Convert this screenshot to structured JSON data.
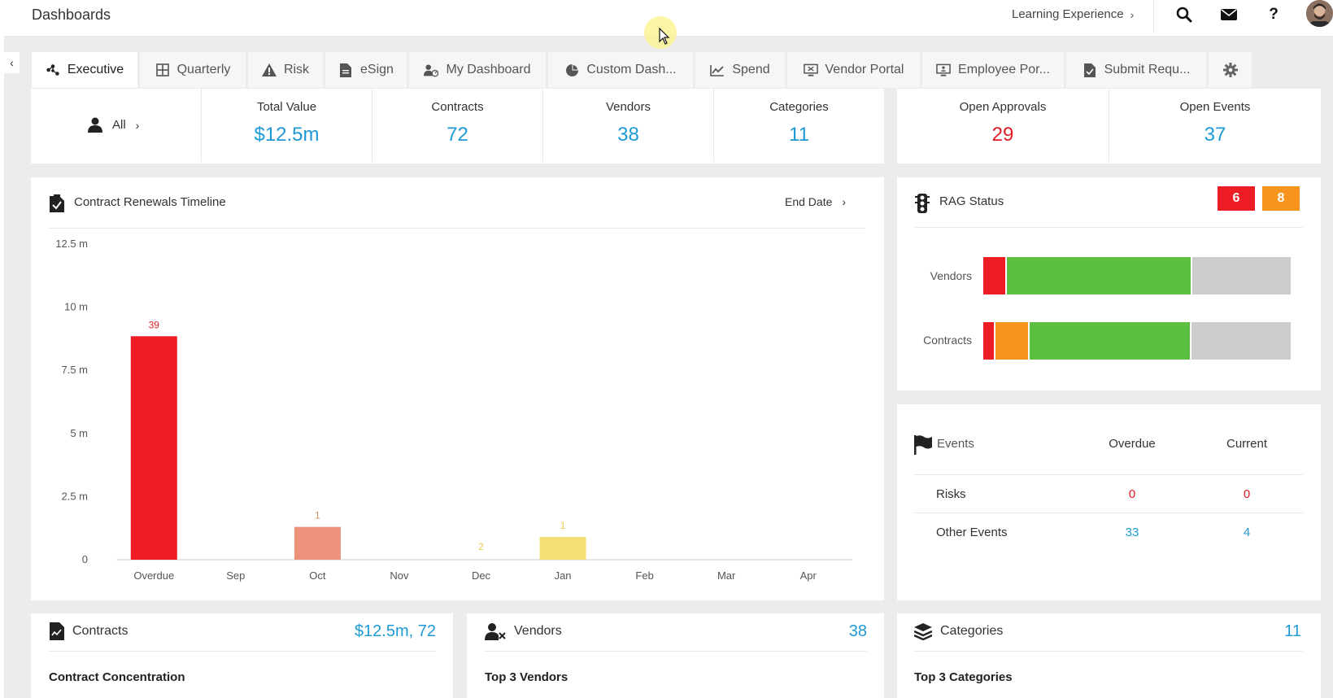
{
  "header": {
    "title": "Dashboards",
    "learning_label": "Learning Experience"
  },
  "tabs": [
    {
      "label": "Executive",
      "icon": "network-icon"
    },
    {
      "label": "Quarterly",
      "icon": "grid-icon"
    },
    {
      "label": "Risk",
      "icon": "warning-icon"
    },
    {
      "label": "eSign",
      "icon": "document-icon"
    },
    {
      "label": "My Dashboard",
      "icon": "user-gauge-icon"
    },
    {
      "label": "Custom Dash...",
      "icon": "pie-icon"
    },
    {
      "label": "Spend",
      "icon": "trend-icon"
    },
    {
      "label": "Vendor Portal",
      "icon": "monitor-icon"
    },
    {
      "label": "Employee Por...",
      "icon": "screen-user-icon"
    },
    {
      "label": "Submit Requ...",
      "icon": "form-icon"
    }
  ],
  "stats": {
    "filter_label": "All",
    "total_value_label": "Total Value",
    "total_value": "$12.5m",
    "contracts_label": "Contracts",
    "contracts": "72",
    "vendors_label": "Vendors",
    "vendors": "38",
    "categories_label": "Categories",
    "categories": "11",
    "open_approvals_label": "Open Approvals",
    "open_approvals": "29",
    "open_events_label": "Open Events",
    "open_events": "37"
  },
  "renewals": {
    "title": "Contract Renewals Timeline",
    "sort_label": "End Date"
  },
  "chart_data": {
    "type": "bar",
    "categories": [
      "Overdue",
      "Sep",
      "Oct",
      "Nov",
      "Dec",
      "Jan",
      "Feb",
      "Mar",
      "Apr"
    ],
    "values": [
      8.85,
      0,
      1.3,
      0,
      0,
      0.9,
      0,
      0,
      0
    ],
    "counts": [
      "39",
      "",
      "1",
      "",
      "2",
      "1",
      "",
      "",
      ""
    ],
    "colors": [
      "#ee1c25",
      "",
      "#ec917a",
      "",
      "#f3d96a",
      "#f5de72",
      "",
      "",
      ""
    ],
    "count_colors": [
      "#e31b23",
      "",
      "#d98a5e",
      "",
      "#e8c84e",
      "#e8c84e",
      "",
      "",
      ""
    ],
    "yticks": [
      "0",
      "2.5 m",
      "5 m",
      "7.5 m",
      "10 m",
      "12.5 m"
    ],
    "ylim": [
      0,
      12.5
    ]
  },
  "rag": {
    "title": "RAG Status",
    "badge_red": "6",
    "badge_amber": "8",
    "vendors_label": "Vendors",
    "contracts_label": "Contracts",
    "vendors_segments": [
      {
        "color": "#ee1c25",
        "fraction": 0.078
      },
      {
        "color": "#5bbf3f",
        "fraction": 0.602
      },
      {
        "color": "#cccccc",
        "fraction": 0.32
      }
    ],
    "contracts_segments": [
      {
        "color": "#ee1c25",
        "fraction": 0.04
      },
      {
        "color": "#f7941d",
        "fraction": 0.11
      },
      {
        "color": "#5bbf3f",
        "fraction": 0.528
      },
      {
        "color": "#cccccc",
        "fraction": 0.322
      }
    ]
  },
  "events": {
    "title": "Events",
    "overdue_label": "Overdue",
    "current_label": "Current",
    "risks_label": "Risks",
    "risks_overdue": "0",
    "risks_current": "0",
    "other_label": "Other Events",
    "other_overdue": "33",
    "other_current": "4"
  },
  "bottom": {
    "contracts_title": "Contracts",
    "contracts_value": "$12.5m, 72",
    "contracts_sub": "Contract Concentration",
    "vendors_title": "Vendors",
    "vendors_value": "38",
    "vendors_sub": "Top 3 Vendors",
    "categories_title": "Categories",
    "categories_value": "11",
    "categories_sub": "Top 3 Categories"
  },
  "colors": {
    "accent_blue": "#1d9ad6",
    "red": "#e31b23",
    "amber": "#f7941d"
  }
}
